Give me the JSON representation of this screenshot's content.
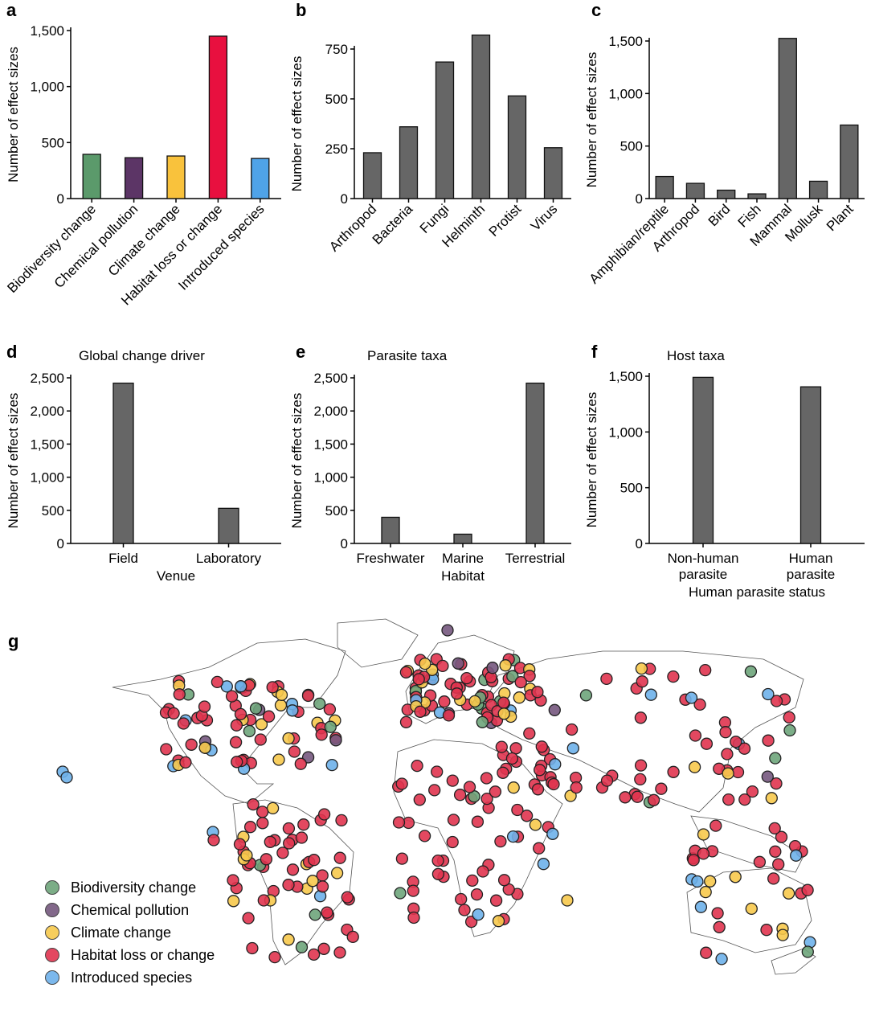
{
  "colors": {
    "bar_default": "#666666",
    "biodiversity": "#5b9a6b",
    "chemical": "#5c3566",
    "climate": "#f9c23c",
    "habitat": "#e8103f",
    "introduced": "#4fa3e8",
    "map_lines": "#555555"
  },
  "panels": {
    "g": {
      "letter": "g"
    }
  },
  "map_legend": [
    {
      "label": "Biodiversity change",
      "color": "#6ea57b"
    },
    {
      "label": "Chemical pollution",
      "color": "#75587e"
    },
    {
      "label": "Climate change",
      "color": "#f7c94d"
    },
    {
      "label": "Habitat loss or change",
      "color": "#e0344f"
    },
    {
      "label": "Introduced species",
      "color": "#6eb1ea"
    }
  ],
  "chart_data": [
    {
      "panel": "a",
      "type": "bar",
      "categories": [
        "Biodiversity change",
        "Chemical pollution",
        "Climate change",
        "Habitat loss or change",
        "Introduced species"
      ],
      "values": [
        395,
        365,
        380,
        1450,
        358
      ],
      "colors": [
        "#5b9a6b",
        "#5c3566",
        "#f9c23c",
        "#e8103f",
        "#4fa3e8"
      ],
      "ylabel": "Number of effect sizes",
      "yticks": [
        0,
        500,
        1000,
        1500
      ],
      "yticklabels": [
        "0",
        "500",
        "1,000",
        "1,500"
      ],
      "ylim": [
        0,
        1500
      ],
      "rotate": true,
      "title": "",
      "xlabel": ""
    },
    {
      "panel": "b",
      "type": "bar",
      "categories": [
        "Arthropod",
        "Bacteria",
        "Fungi",
        "Helminth",
        "Protist",
        "Virus"
      ],
      "values": [
        230,
        360,
        685,
        820,
        515,
        255
      ],
      "ylabel": "Number of effect sizes",
      "yticks": [
        0,
        250,
        500,
        750
      ],
      "yticklabels": [
        "0",
        "250",
        "500",
        "750"
      ],
      "ylim": [
        0,
        750
      ],
      "rotate": true,
      "title": "",
      "xlabel": ""
    },
    {
      "panel": "c",
      "type": "bar",
      "categories": [
        "Amphibian/reptile",
        "Arthropod",
        "Bird",
        "Fish",
        "Mammal",
        "Mollusk",
        "Plant"
      ],
      "values": [
        210,
        145,
        80,
        45,
        1525,
        165,
        700
      ],
      "ylabel": "Number of effect sizes",
      "yticks": [
        0,
        500,
        1000,
        1500
      ],
      "yticklabels": [
        "0",
        "500",
        "1,000",
        "1,500"
      ],
      "ylim": [
        0,
        1500
      ],
      "rotate": true,
      "title": "",
      "xlabel": ""
    },
    {
      "panel": "d",
      "type": "bar",
      "title": "Global change driver",
      "categories": [
        "Field",
        "Laboratory"
      ],
      "values": [
        2420,
        530
      ],
      "ylabel": "Number of effect sizes",
      "xlabel": "Venue",
      "yticks": [
        0,
        500,
        1000,
        1500,
        2000,
        2500
      ],
      "yticklabels": [
        "0",
        "500",
        "1,000",
        "1,500",
        "2,000",
        "2,500"
      ],
      "ylim": [
        0,
        2500
      ],
      "rotate": false
    },
    {
      "panel": "e",
      "type": "bar",
      "title": "Parasite taxa",
      "categories": [
        "Freshwater",
        "Marine",
        "Terrestrial"
      ],
      "values": [
        395,
        140,
        2420
      ],
      "ylabel": "Number of effect sizes",
      "xlabel": "Habitat",
      "yticks": [
        0,
        500,
        1000,
        1500,
        2000,
        2500
      ],
      "yticklabels": [
        "0",
        "500",
        "1,000",
        "1,500",
        "2,000",
        "2,500"
      ],
      "ylim": [
        0,
        2500
      ],
      "rotate": false
    },
    {
      "panel": "f",
      "type": "bar",
      "title": "Host taxa",
      "categories": [
        "Non-human\nparasite",
        "Human\nparasite"
      ],
      "values": [
        1490,
        1405
      ],
      "ylabel": "Number of effect sizes",
      "xlabel": "Human parasite status",
      "yticks": [
        0,
        500,
        1000,
        1500
      ],
      "yticklabels": [
        "0",
        "500",
        "1,000",
        "1,500"
      ],
      "ylim": [
        0,
        1500
      ],
      "rotate": false
    }
  ]
}
